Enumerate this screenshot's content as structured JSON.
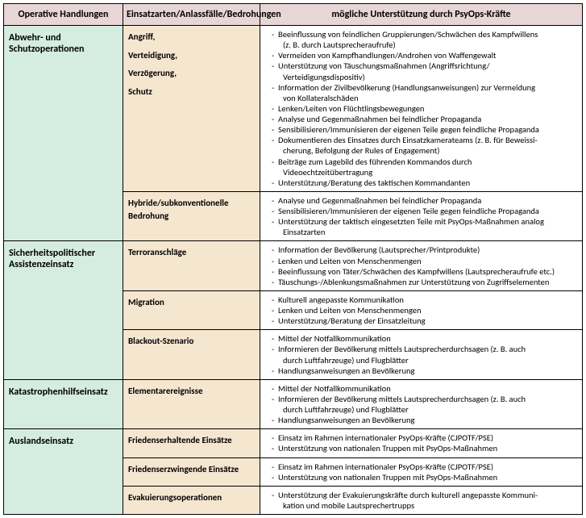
{
  "header": {
    "col1": "Operative Handlungen",
    "col2": "Einsatzarten/Anlassfälle/Bedrohungen",
    "col3": "mögliche Unterstützung durch PsyOps-Kräfte"
  },
  "rows": [
    {
      "ops": "Abwehr- und Schutzoperationen",
      "subrows": [
        {
          "type_lines": [
            "Angriff,",
            "Verteidigung,",
            "Verzögerung,",
            "Schutz"
          ],
          "items": [
            {
              "t": "Beeinflussung von feindlichen Gruppierungen/Schwächen des Kampfwillens"
            },
            {
              "t": "(z. B. durch Lautsprecheraufrufe)",
              "indent": true
            },
            {
              "t": "Vermeiden von Kampfhandlungen/Androhen von Waffengewalt"
            },
            {
              "t": "Unterstützung von Täuschungsmaßnahmen (Angriffsrichtung/"
            },
            {
              "t": "Verteidigungsdispositiv)",
              "indent": true
            },
            {
              "t": "Information der Zivilbevölkerung (Handlungsanweisungen) zur Vermeidung"
            },
            {
              "t": "von Kollateralschäden",
              "indent": true
            },
            {
              "t": "Lenken/Leiten von Flüchtlingsbewegungen"
            },
            {
              "t": "Analyse und Gegenmaßnahmen bei feindlicher Propaganda"
            },
            {
              "t": "Sensibilisieren/Immunisieren der eigenen Teile gegen feindliche Propaganda"
            },
            {
              "t": "Dokumentieren des Einsatzes durch Einsatzkamerateams (z. B. für Beweissi-"
            },
            {
              "t": "cherung, Befolgung der Rules of Engagement)",
              "indent": true
            },
            {
              "t": "Beiträge zum Lagebild des führenden Kommandos durch"
            },
            {
              "t": "Videoechtzeitübertragung",
              "indent": true
            },
            {
              "t": "Unterstützung/Beratung des taktischen Kommandanten"
            }
          ]
        },
        {
          "type_lines": [
            "Hybride/subkonventionelle Bedrohung"
          ],
          "items": [
            {
              "t": "Analyse und Gegenmaßnahmen bei feindlicher Propaganda"
            },
            {
              "t": "Sensibilisieren/Immunisieren der eigenen Teile gegen feindliche Propaganda"
            },
            {
              "t": "Unterstützung der taktisch eingesetzten Teile mit PsyOps-Maßnahmen analog"
            },
            {
              "t": "Einsatzarten",
              "indent": true
            }
          ]
        }
      ]
    },
    {
      "ops": "Sicherheitspolitischer Assistenzeinsatz",
      "subrows": [
        {
          "type_lines": [
            "Terroranschläge"
          ],
          "items": [
            {
              "t": "Information der Bevölkerung (Lautsprecher/Printprodukte)"
            },
            {
              "t": "Lenken und Leiten von Menschenmengen"
            },
            {
              "t": "Beeinflussung von Täter/Schwächen des Kampfwillens (Lautsprecheraufrufe etc.)"
            },
            {
              "t": "Täuschungs-/Ablenkungsmaßnahmen zur Unterstützung von Zugriffselementen"
            }
          ]
        },
        {
          "type_lines": [
            "Migration"
          ],
          "items": [
            {
              "t": "Kulturell angepasste Kommunikation"
            },
            {
              "t": "Lenken und Leiten von Menschenmengen"
            },
            {
              "t": "Unterstützung/Beratung der Einsatzleitung"
            }
          ]
        },
        {
          "type_lines": [
            "Blackout-Szenario"
          ],
          "items": [
            {
              "t": "Mittel der Notfallkommunikation"
            },
            {
              "t": "Informieren der Bevölkerung mittels Lautsprecherdurchsagen (z. B. auch"
            },
            {
              "t": "durch Luftfahrzeuge) und Flugblätter",
              "indent": true
            },
            {
              "t": "Handlungsanweisungen an Bevölkerung"
            }
          ]
        }
      ]
    },
    {
      "ops": "Katastrophenhilfseinsatz",
      "subrows": [
        {
          "type_lines": [
            "Elementarereignisse"
          ],
          "items": [
            {
              "t": "Mittel der Notfallkommunikation"
            },
            {
              "t": "Informieren der Bevölkerung mittels Lautsprecherdurchsagen (z. B. auch"
            },
            {
              "t": "durch Luftfahrzeuge) und Flugblätter",
              "indent": true
            },
            {
              "t": "Handlungsanweisungen an Bevölkerung"
            }
          ]
        }
      ]
    },
    {
      "ops": "Auslandseinsatz",
      "subrows": [
        {
          "type_lines": [
            "Friedenserhaltende Einsätze"
          ],
          "items": [
            {
              "t": "Einsatz im Rahmen internationaler PsyOps-Kräfte (CJPOTF/PSE)"
            },
            {
              "t": "Unterstützung von nationalen Truppen mit PsyOps-Maßnahmen"
            }
          ]
        },
        {
          "type_lines": [
            "Friedenserzwingende Einsätze"
          ],
          "items": [
            {
              "t": "Einsatz im Rahmen internationaler PsyOps-Kräfte (CJPOTF/PSE)"
            },
            {
              "t": "Unterstützung von nationalen Truppen mit PsyOps-Maßnahmen"
            }
          ]
        },
        {
          "type_lines": [
            "Evakuierungsoperationen"
          ],
          "items": [
            {
              "t": "Unterstützung der Evakuierungskräfte durch kulturell angepasste Kommuni-"
            },
            {
              "t": "kation und mobile Lautsprechertrupps",
              "indent": true
            }
          ]
        }
      ]
    }
  ]
}
